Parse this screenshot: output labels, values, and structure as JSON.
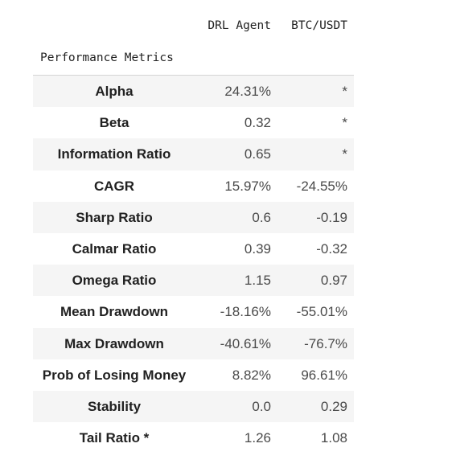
{
  "table": {
    "columns": {
      "agent": "DRL Agent",
      "btc": "BTC/USDT"
    },
    "index_title": "Performance Metrics",
    "rows": [
      {
        "metric": "Alpha",
        "agent": "24.31%",
        "btc": "*"
      },
      {
        "metric": "Beta",
        "agent": "0.32",
        "btc": "*"
      },
      {
        "metric": "Information Ratio",
        "agent": "0.65",
        "btc": "*"
      },
      {
        "metric": "CAGR",
        "agent": "15.97%",
        "btc": "-24.55%"
      },
      {
        "metric": "Sharp Ratio",
        "agent": "0.6",
        "btc": "-0.19"
      },
      {
        "metric": "Calmar Ratio",
        "agent": "0.39",
        "btc": "-0.32"
      },
      {
        "metric": "Omega Ratio",
        "agent": "1.15",
        "btc": "0.97"
      },
      {
        "metric": "Mean Drawdown",
        "agent": "-18.16%",
        "btc": "-55.01%"
      },
      {
        "metric": "Max Drawdown",
        "agent": "-40.61%",
        "btc": "-76.7%"
      },
      {
        "metric": "Prob of Losing Money",
        "agent": "8.82%",
        "btc": "96.61%"
      },
      {
        "metric": "Stability",
        "agent": "0.0",
        "btc": "0.29"
      },
      {
        "metric": "Tail Ratio *",
        "agent": "1.26",
        "btc": "1.08"
      }
    ]
  }
}
